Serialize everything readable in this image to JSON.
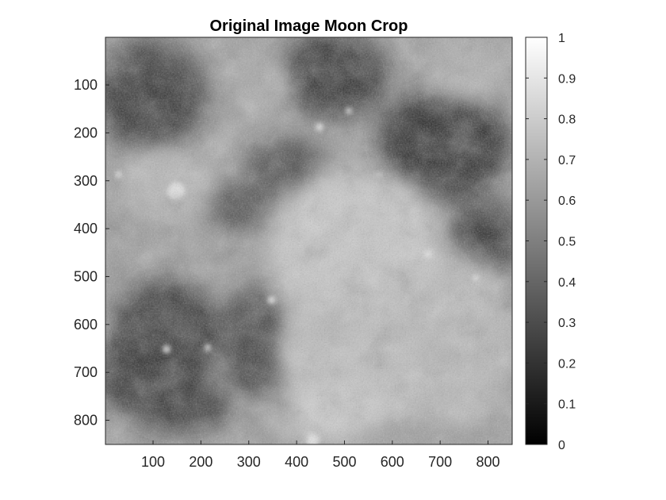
{
  "title": "Original Image Moon Crop",
  "image": {
    "subject": "moon-surface-crop",
    "x_range": [
      1,
      850
    ],
    "y_range": [
      1,
      850
    ],
    "y_direction": "reversed",
    "x_ticks": [
      100,
      200,
      300,
      400,
      500,
      600,
      700,
      800
    ],
    "y_ticks": [
      100,
      200,
      300,
      400,
      500,
      600,
      700,
      800
    ]
  },
  "colorbar": {
    "colormap": "gray",
    "range": [
      0,
      1
    ],
    "ticks": [
      "0",
      "0.1",
      "0.2",
      "0.3",
      "0.4",
      "0.5",
      "0.6",
      "0.7",
      "0.8",
      "0.9",
      "1"
    ],
    "location": "right"
  },
  "colors": {
    "background": "#ffffff",
    "axis": "#262626",
    "title": "#000000"
  }
}
